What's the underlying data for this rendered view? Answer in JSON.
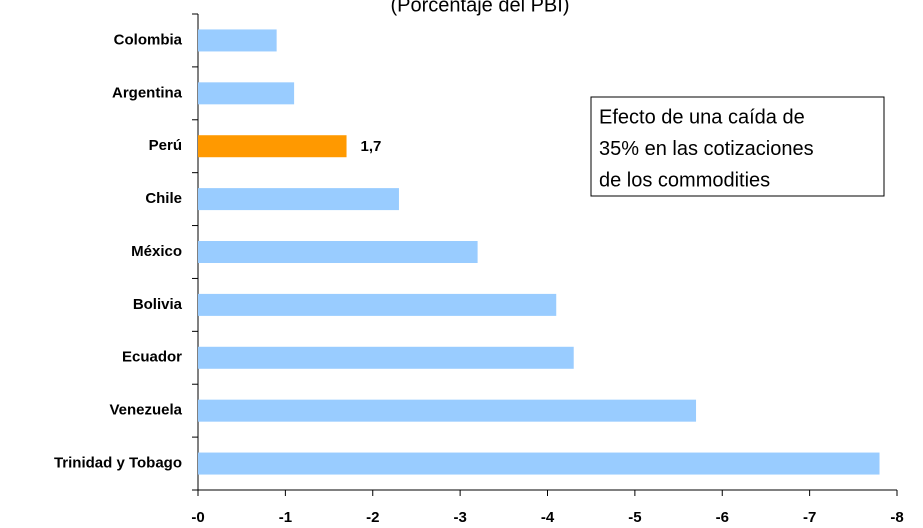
{
  "chart_data": {
    "type": "bar",
    "orientation": "horizontal",
    "subtitle": "(Porcentaje del PBI)",
    "categories": [
      "Colombia",
      "Argentina",
      "Perú",
      "Chile",
      "México",
      "Bolivia",
      "Ecuador",
      "Venezuela",
      "Trinidad y Tobago"
    ],
    "values": [
      -0.9,
      -1.1,
      -1.7,
      -2.3,
      -3.2,
      -4.1,
      -4.3,
      -5.7,
      -7.8
    ],
    "value_labels": [
      null,
      null,
      "1,7",
      null,
      null,
      null,
      null,
      null,
      null
    ],
    "colors": [
      "#99ccff",
      "#99ccff",
      "#ff9900",
      "#99ccff",
      "#99ccff",
      "#99ccff",
      "#99ccff",
      "#99ccff",
      "#99ccff"
    ],
    "xlim": [
      0,
      -8
    ],
    "xticks": [
      {
        "value": 0,
        "label": "-0"
      },
      -1,
      -2,
      -3,
      -4,
      -5,
      -6,
      -7,
      -8
    ],
    "annotation": [
      "Efecto de una caída de",
      "35% en las cotizaciones",
      "de los commodities"
    ]
  }
}
